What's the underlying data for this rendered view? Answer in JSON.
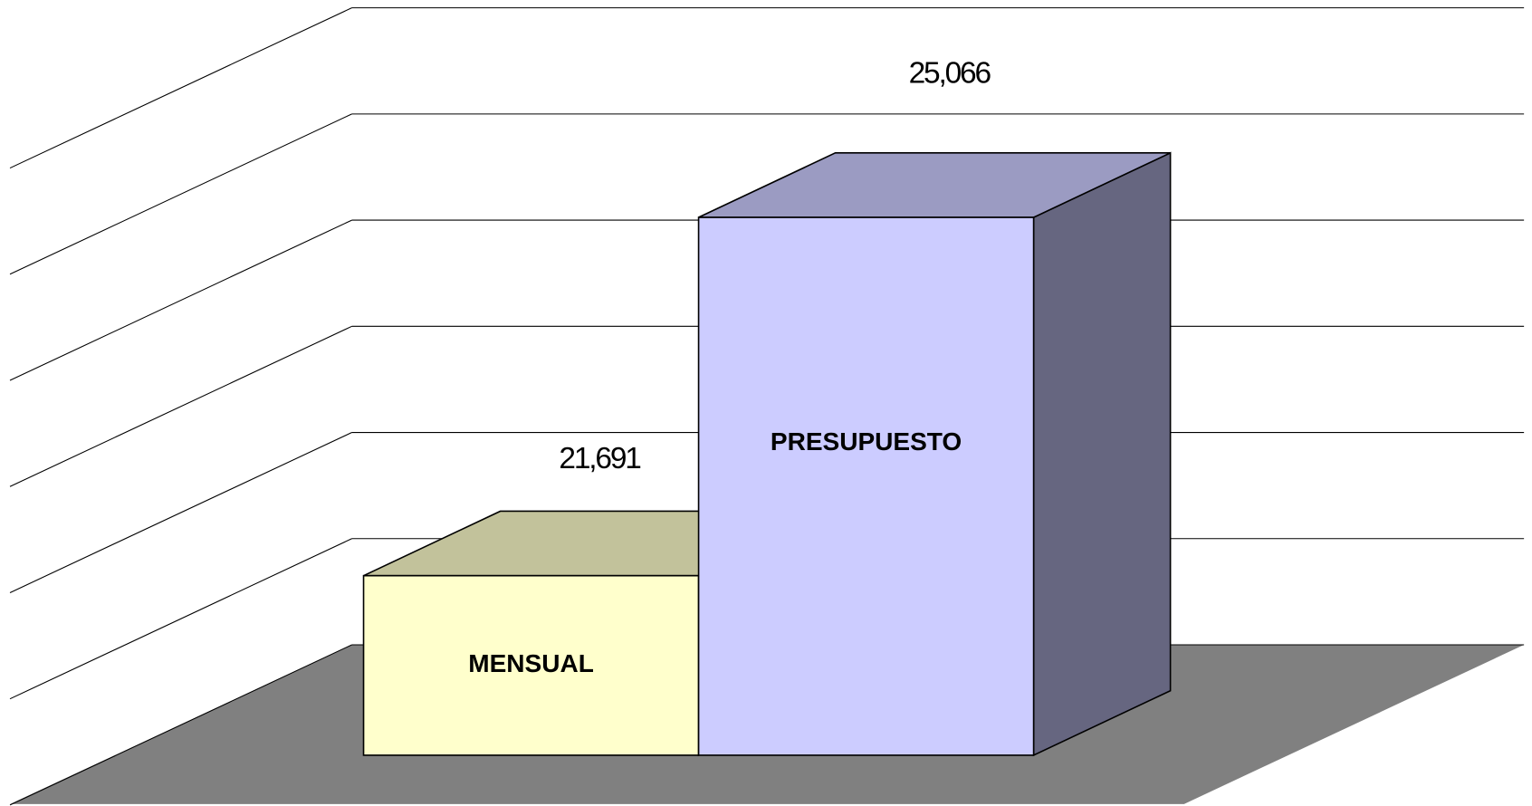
{
  "chart_data": {
    "type": "bar3d",
    "categories": [
      "MENSUAL",
      "PRESUPUESTO"
    ],
    "values": [
      21691,
      25066
    ],
    "value_labels": [
      "21,691",
      "25,066"
    ],
    "colors": [
      "#ffffcc",
      "#ccccff"
    ],
    "ylim": [
      20000,
      26000
    ],
    "yticks": [
      20000,
      21000,
      22000,
      23000,
      24000,
      25000,
      26000
    ],
    "grid": true
  }
}
